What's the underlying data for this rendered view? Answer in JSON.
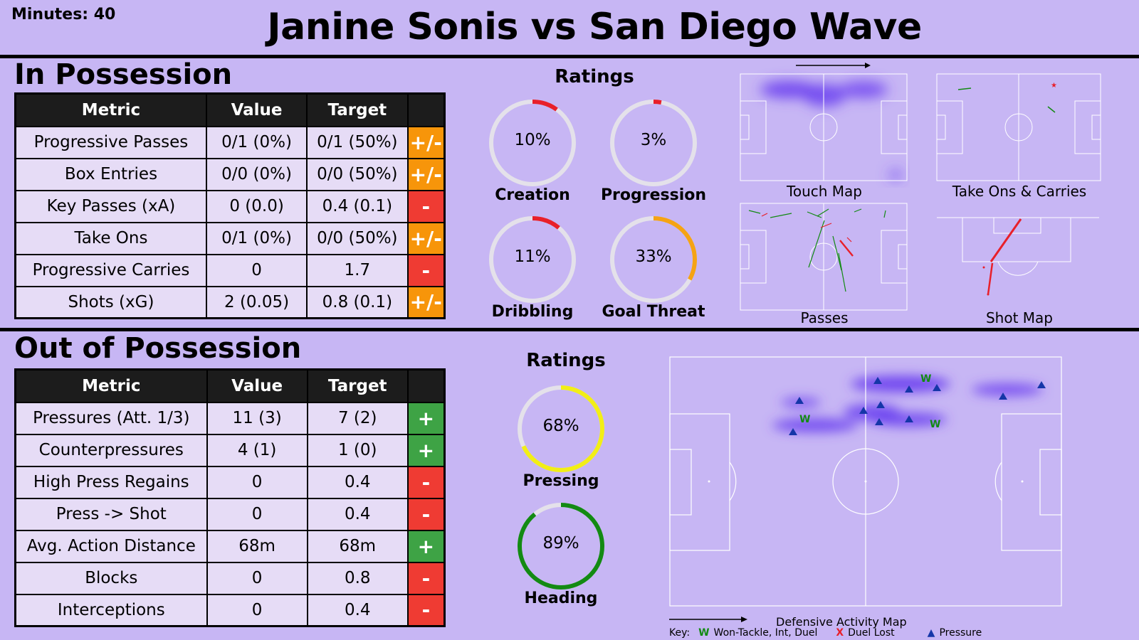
{
  "header": {
    "minutes": "Minutes: 40",
    "title": "Janine Sonis vs San Diego Wave"
  },
  "in_possession": {
    "title": "In Possession",
    "columns": [
      "Metric",
      "Value",
      "Target",
      ""
    ],
    "rows": [
      {
        "metric": "Progressive Passes",
        "value": "0/1 (0%)",
        "target": "0/1 (50%)",
        "indicator": "+/-",
        "status": "pm"
      },
      {
        "metric": "Box Entries",
        "value": "0/0 (0%)",
        "target": "0/0 (50%)",
        "indicator": "+/-",
        "status": "pm"
      },
      {
        "metric": "Key Passes (xA)",
        "value": "0 (0.0)",
        "target": "0.4 (0.1)",
        "indicator": "-",
        "status": "minus"
      },
      {
        "metric": "Take Ons",
        "value": "0/1 (0%)",
        "target": "0/0 (50%)",
        "indicator": "+/-",
        "status": "pm"
      },
      {
        "metric": "Progressive Carries",
        "value": "0",
        "target": "1.7",
        "indicator": "-",
        "status": "minus"
      },
      {
        "metric": "Shots (xG)",
        "value": "2 (0.05)",
        "target": "0.8 (0.1)",
        "indicator": "+/-",
        "status": "pm"
      }
    ],
    "ratings": {
      "title": "Ratings",
      "gauges": [
        {
          "label": "Creation",
          "value": "10%",
          "fraction": 0.1,
          "color": "#e8202a"
        },
        {
          "label": "Progression",
          "value": "3%",
          "fraction": 0.03,
          "color": "#e8202a"
        },
        {
          "label": "Dribbling",
          "value": "11%",
          "fraction": 0.11,
          "color": "#e8202a"
        },
        {
          "label": "Goal Threat",
          "value": "33%",
          "fraction": 0.33,
          "color": "#f5a314"
        }
      ]
    },
    "maps": [
      "Touch Map",
      "Take Ons & Carries",
      "Passes",
      "Shot Map"
    ]
  },
  "out_of_possession": {
    "title": "Out of Possession",
    "columns": [
      "Metric",
      "Value",
      "Target",
      ""
    ],
    "rows": [
      {
        "metric": "Pressures (Att. 1/3)",
        "value": "11 (3)",
        "target": "7 (2)",
        "indicator": "+",
        "status": "plus"
      },
      {
        "metric": "Counterpressures",
        "value": "4 (1)",
        "target": "1 (0)",
        "indicator": "+",
        "status": "plus"
      },
      {
        "metric": "High Press Regains",
        "value": "0",
        "target": "0.4",
        "indicator": "-",
        "status": "minus"
      },
      {
        "metric": "Press -> Shot",
        "value": "0",
        "target": "0.4",
        "indicator": "-",
        "status": "minus"
      },
      {
        "metric": "Avg. Action Distance",
        "value": "68m",
        "target": "68m",
        "indicator": "+",
        "status": "plus"
      },
      {
        "metric": "Blocks",
        "value": "0",
        "target": "0.8",
        "indicator": "-",
        "status": "minus"
      },
      {
        "metric": "Interceptions",
        "value": "0",
        "target": "0.4",
        "indicator": "-",
        "status": "minus"
      }
    ],
    "ratings": {
      "title": "Ratings",
      "gauges": [
        {
          "label": "Pressing",
          "value": "68%",
          "fraction": 0.68,
          "color": "#f2ee16"
        },
        {
          "label": "Heading",
          "value": "89%",
          "fraction": 0.89,
          "color": "#138a13"
        }
      ]
    },
    "defensive_map": {
      "label": "Defensive Activity Map",
      "key_label": "Key:",
      "key_items": [
        {
          "symbol": "W",
          "text": "Won-Tackle, Int, Duel",
          "color": "#138a13"
        },
        {
          "symbol": "X",
          "text": "Duel Lost",
          "color": "#e8202a"
        },
        {
          "symbol": "▲",
          "text": "Pressure",
          "color": "#1536a8"
        }
      ]
    }
  },
  "colors": {
    "background": "#c7b6f4",
    "header_row": "#1c1c1c",
    "cell": "#e6dcf6",
    "neutral": "#f7950a",
    "below_target": "#ef3b33",
    "above_target": "#3ea345"
  }
}
